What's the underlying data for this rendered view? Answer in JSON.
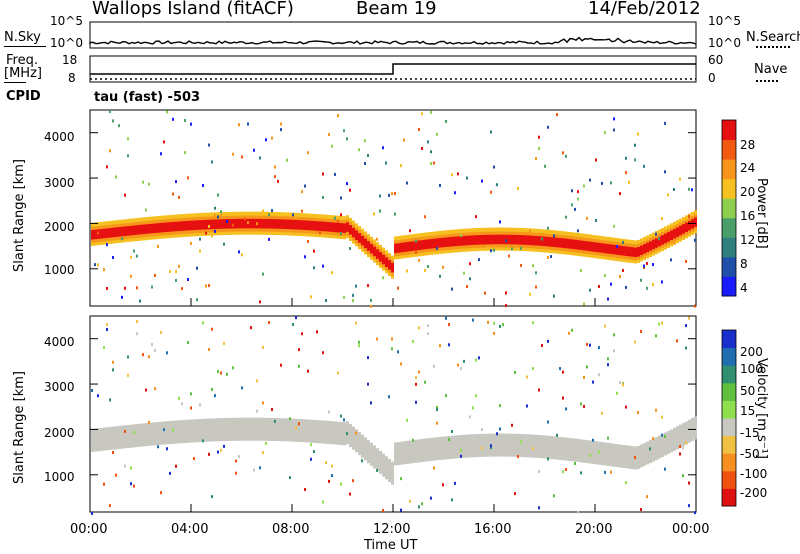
{
  "header": {
    "site": "Wallops Island (fitACF)",
    "beam": "Beam 19",
    "date": "14/Feb/2012"
  },
  "status_panels": {
    "nsky_label": "N.Sky",
    "nsky_ticks": [
      "10^5",
      "10^0"
    ],
    "nsearch_label": "N.Search",
    "nsearch_ticks": [
      "10^5",
      "10^0"
    ],
    "freq_label": "Freq.",
    "freq_unit": "[MHz]",
    "freq_ticks": [
      "18",
      "8"
    ],
    "nave_label": "Nave",
    "nave_ticks": [
      "60",
      "0"
    ],
    "cpid_label": "CPID",
    "cpid_value": "tau (fast) -503"
  },
  "chart_data": [
    {
      "type": "heatmap",
      "name": "power",
      "ylabel": "Slant Range [km]",
      "xlabel": "Time UT",
      "ylim": [
        180,
        4500
      ],
      "yticks": [
        "1000",
        "2000",
        "3000",
        "4000"
      ],
      "xticks": [
        "00:00",
        "04:00",
        "08:00",
        "12:00",
        "16:00",
        "20:00",
        "00:00"
      ],
      "colorbar": {
        "label": "Power [dB]",
        "ticks": [
          "4",
          "8",
          "12",
          "16",
          "20",
          "24",
          "28"
        ],
        "colors": [
          "#1a1aff",
          "#1f4fa8",
          "#2f7f7f",
          "#4a9e6a",
          "#8ecf4f",
          "#f5c020",
          "#f7961a",
          "#f25a12",
          "#e61010"
        ]
      }
    },
    {
      "type": "heatmap",
      "name": "velocity",
      "ylabel": "Slant Range [km]",
      "xlabel": "Time UT",
      "ylim": [
        180,
        4500
      ],
      "yticks": [
        "1000",
        "2000",
        "3000",
        "4000"
      ],
      "xticks": [
        "00:00",
        "04:00",
        "08:00",
        "12:00",
        "16:00",
        "20:00",
        "00:00"
      ],
      "colorbar": {
        "label": "Velocity [m s⁻¹]",
        "ticks": [
          "200",
          "100",
          "50",
          "15",
          "-15",
          "-50",
          "-100",
          "-200"
        ],
        "colors": [
          "#1a2ecc",
          "#1f6fb0",
          "#2f8f6f",
          "#5fbf3f",
          "#8fdf4f",
          "#c8c8c0",
          "#f0c040",
          "#f59020",
          "#f05010",
          "#e01010"
        ]
      }
    }
  ],
  "xlabel": "Time UT"
}
